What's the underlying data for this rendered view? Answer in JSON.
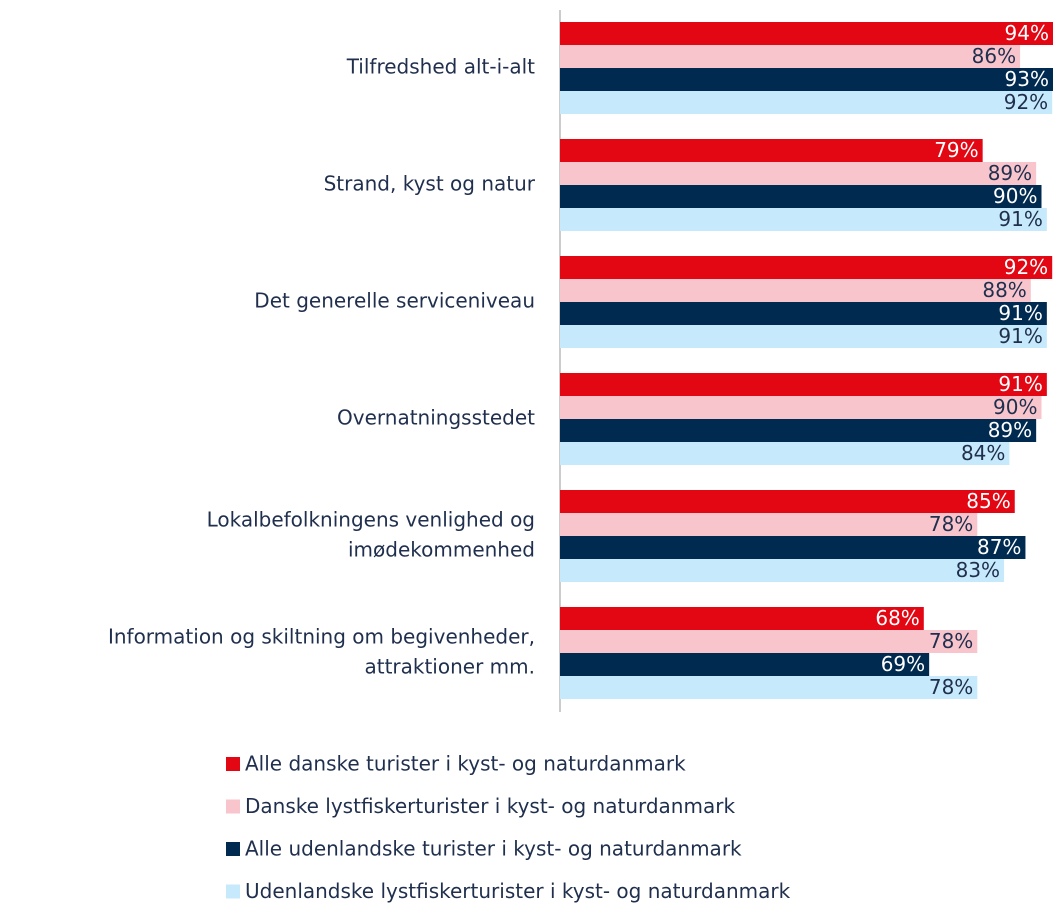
{
  "chart_data": {
    "type": "barh",
    "categories": [
      [
        "Tilfredshed alt-i-alt"
      ],
      [
        "Strand, kyst og natur"
      ],
      [
        "Det generelle serviceniveau"
      ],
      [
        "Overnatningsstedet"
      ],
      [
        "Lokalbefolkningens venlighed og",
        "imødekommenhed"
      ],
      [
        "Information og skiltning om begivenheder,",
        "attraktioner mm."
      ]
    ],
    "xlim": [
      0,
      100
    ],
    "series": [
      {
        "name": "Alle danske turister i kyst- og naturdanmark",
        "color": "#e30613",
        "label_color": "#ffffff",
        "values": [
          94,
          79,
          92,
          91,
          85,
          68
        ],
        "value_labels": [
          "94%",
          "79%",
          "92%",
          "91%",
          "85%",
          "68%"
        ]
      },
      {
        "name": "Danske lystfiskerturister i kyst- og naturdanmark",
        "color": "#f8c5cd",
        "label_color": "#1f2f4d",
        "values": [
          86,
          89,
          88,
          90,
          78,
          78
        ],
        "value_labels": [
          "86%",
          "89%",
          "88%",
          "90%",
          "78%",
          "78%"
        ]
      },
      {
        "name": "Alle udenlandske turister i kyst- og naturdanmark",
        "color": "#002a4f",
        "label_color": "#ffffff",
        "values": [
          93,
          90,
          91,
          89,
          87,
          69
        ],
        "value_labels": [
          "93%",
          "90%",
          "91%",
          "89%",
          "87%",
          "69%"
        ]
      },
      {
        "name": "Udenlandske lystfiskerturister i kyst- og naturdanmark",
        "color": "#c6e9fb",
        "label_color": "#1f2f4d",
        "values": [
          92,
          91,
          91,
          84,
          83,
          78
        ],
        "value_labels": [
          "92%",
          "91%",
          "91%",
          "84%",
          "83%",
          "78%"
        ]
      }
    ]
  }
}
